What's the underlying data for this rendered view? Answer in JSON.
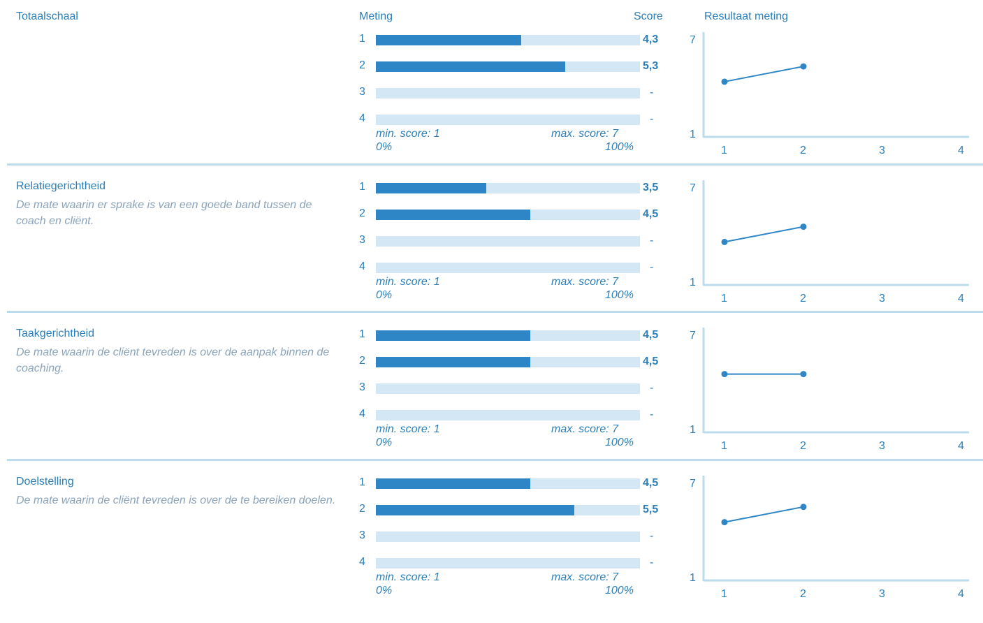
{
  "headers": {
    "scale": "Totaalschaal",
    "meting": "Meting",
    "score": "Score",
    "resultaat": "Resultaat meting"
  },
  "colors": {
    "accent": "#2a7fb8",
    "bar_fill": "#2f86c6",
    "bar_track": "#d3e8f4",
    "desc_text": "#8aa3bb",
    "divider": "#bcdcec"
  },
  "bar_legend": {
    "min_label": "min. score: 1",
    "max_label": "max. score: 7",
    "min_pct": "0%",
    "max_pct": "100%"
  },
  "sections": [
    {
      "title": "",
      "description": "",
      "rows": [
        {
          "label": "1",
          "score": "4,3"
        },
        {
          "label": "2",
          "score": "5,3"
        },
        {
          "label": "3",
          "score": "-"
        },
        {
          "label": "4",
          "score": "-"
        }
      ]
    },
    {
      "title": "Relatiegerichtheid",
      "description": "De mate waarin er sprake is van een goede band tussen de coach en cliënt.",
      "rows": [
        {
          "label": "1",
          "score": "3,5"
        },
        {
          "label": "2",
          "score": "4,5"
        },
        {
          "label": "3",
          "score": "-"
        },
        {
          "label": "4",
          "score": "-"
        }
      ]
    },
    {
      "title": "Taakgerichtheid",
      "description": "De mate waarin de cliënt tevreden is over de aanpak binnen de coaching.",
      "rows": [
        {
          "label": "1",
          "score": "4,5"
        },
        {
          "label": "2",
          "score": "4,5"
        },
        {
          "label": "3",
          "score": "-"
        },
        {
          "label": "4",
          "score": "-"
        }
      ]
    },
    {
      "title": "Doelstelling",
      "description": "De mate waarin de cliënt tevreden is over de te bereiken doelen.",
      "rows": [
        {
          "label": "1",
          "score": "4,5"
        },
        {
          "label": "2",
          "score": "5,5"
        },
        {
          "label": "3",
          "score": "-"
        },
        {
          "label": "4",
          "score": "-"
        }
      ]
    }
  ],
  "chart_data": [
    {
      "type": "line",
      "title": "Totaalschaal",
      "x": [
        1,
        2,
        3,
        4
      ],
      "values": [
        4.3,
        5.3,
        null,
        null
      ],
      "ylim": [
        1,
        7
      ],
      "xticks": [
        "1",
        "2",
        "3",
        "4"
      ],
      "yticks": [
        "1",
        "7"
      ],
      "grid": false
    },
    {
      "type": "line",
      "title": "Relatiegerichtheid",
      "x": [
        1,
        2,
        3,
        4
      ],
      "values": [
        3.5,
        4.5,
        null,
        null
      ],
      "ylim": [
        1,
        7
      ],
      "xticks": [
        "1",
        "2",
        "3",
        "4"
      ],
      "yticks": [
        "1",
        "7"
      ],
      "grid": false
    },
    {
      "type": "line",
      "title": "Taakgerichtheid",
      "x": [
        1,
        2,
        3,
        4
      ],
      "values": [
        4.5,
        4.5,
        null,
        null
      ],
      "ylim": [
        1,
        7
      ],
      "xticks": [
        "1",
        "2",
        "3",
        "4"
      ],
      "yticks": [
        "1",
        "7"
      ],
      "grid": false
    },
    {
      "type": "line",
      "title": "Doelstelling",
      "x": [
        1,
        2,
        3,
        4
      ],
      "values": [
        4.5,
        5.5,
        null,
        null
      ],
      "ylim": [
        1,
        7
      ],
      "xticks": [
        "1",
        "2",
        "3",
        "4"
      ],
      "yticks": [
        "1",
        "7"
      ],
      "grid": false
    }
  ]
}
